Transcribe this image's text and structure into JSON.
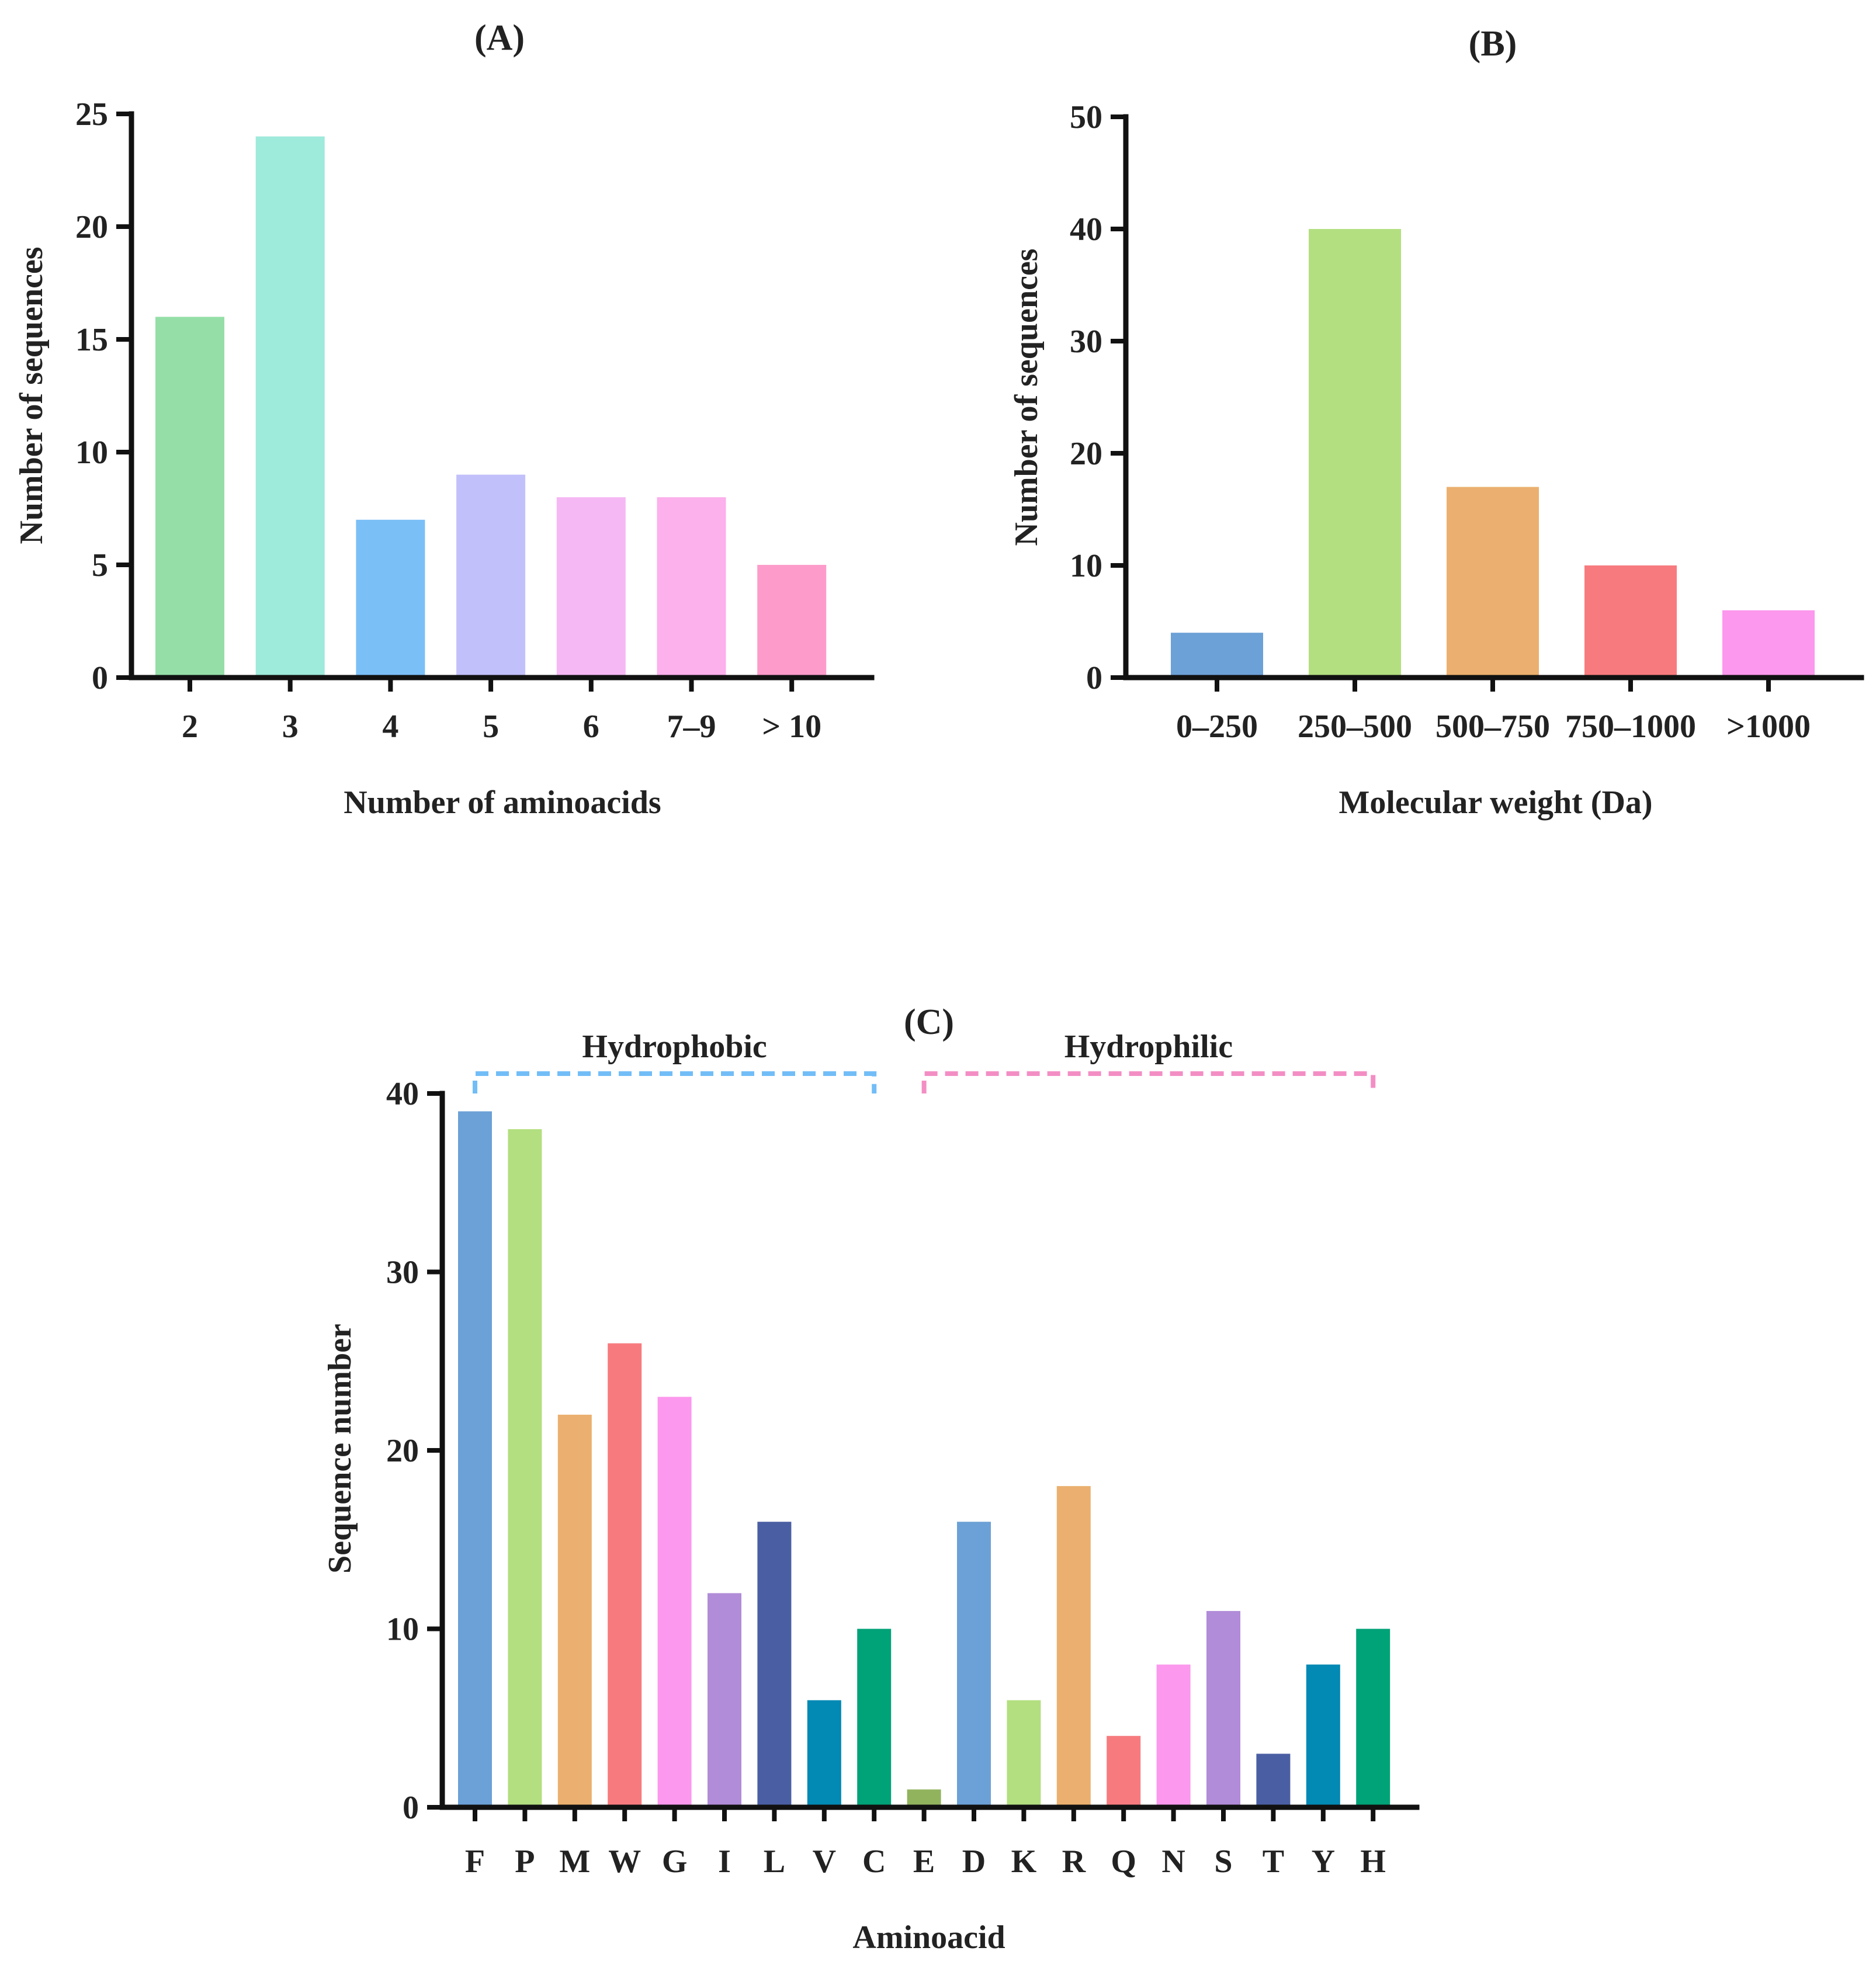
{
  "chart_data": [
    {
      "panel": "(A)",
      "type": "bar",
      "title": "(A)",
      "xlabel": "Number of aminoacids",
      "ylabel": "Number of sequences",
      "categories": [
        "2",
        "3",
        "4",
        "5",
        "6",
        "7–9",
        "> 10"
      ],
      "values": [
        16,
        24,
        7,
        9,
        8,
        8,
        5
      ],
      "colors": [
        "#95dea8",
        "#9eeadb",
        "#7bbff7",
        "#c2c0fb",
        "#f6b8f4",
        "#fcb0ec",
        "#fd9cca"
      ],
      "ylim": [
        0,
        25
      ],
      "yticks": [
        "0",
        "5",
        "10",
        "15",
        "20",
        "25"
      ],
      "grid": false,
      "legend": "none"
    },
    {
      "panel": "(B)",
      "type": "bar",
      "title": "(B)",
      "xlabel": "Molecular weight (Da)",
      "ylabel": "Number of sequences",
      "categories": [
        "0–250",
        "250–500",
        "500–750",
        "750–1000",
        ">1000"
      ],
      "values": [
        4,
        40,
        17,
        10,
        6
      ],
      "colors": [
        "#6ca1d7",
        "#b3df80",
        "#ebb06f",
        "#f77b7e",
        "#fc98ed"
      ],
      "ylim": [
        0,
        50
      ],
      "yticks": [
        "0",
        "10",
        "20",
        "30",
        "40",
        "50"
      ],
      "grid": false,
      "legend": "none"
    },
    {
      "panel": "(C)",
      "type": "bar",
      "title": "(C)",
      "xlabel": "Aminoacid",
      "ylabel": "Sequence number",
      "categories": [
        "F",
        "P",
        "M",
        "W",
        "G",
        "I",
        "L",
        "V",
        "C",
        "E",
        "D",
        "K",
        "R",
        "Q",
        "N",
        "S",
        "T",
        "Y",
        "H"
      ],
      "values": [
        39,
        38,
        22,
        26,
        23,
        12,
        16,
        6,
        10,
        1,
        16,
        6,
        18,
        4,
        8,
        11,
        3,
        8,
        10
      ],
      "colors": [
        "#6ca1d7",
        "#b3df80",
        "#ebb06f",
        "#f77b7e",
        "#fc98ed",
        "#b18cd8",
        "#4a5fa3",
        "#0289b4",
        "#00a277",
        "#91b35e",
        "#6ca1d7",
        "#b3df80",
        "#ebb06f",
        "#f77b7e",
        "#fc98ed",
        "#b18cd8",
        "#4a5fa3",
        "#0289b4",
        "#00a277"
      ],
      "ylim": [
        0,
        40
      ],
      "yticks": [
        "0",
        "10",
        "20",
        "30",
        "40"
      ],
      "grid": false,
      "legend": "none",
      "groups": [
        {
          "label": "Hydrophobic",
          "from": "F",
          "to": "C",
          "color": "#72bdf7"
        },
        {
          "label": "Hydrophilic",
          "from": "E",
          "to": "H",
          "color": "#f38ec4"
        }
      ]
    }
  ]
}
